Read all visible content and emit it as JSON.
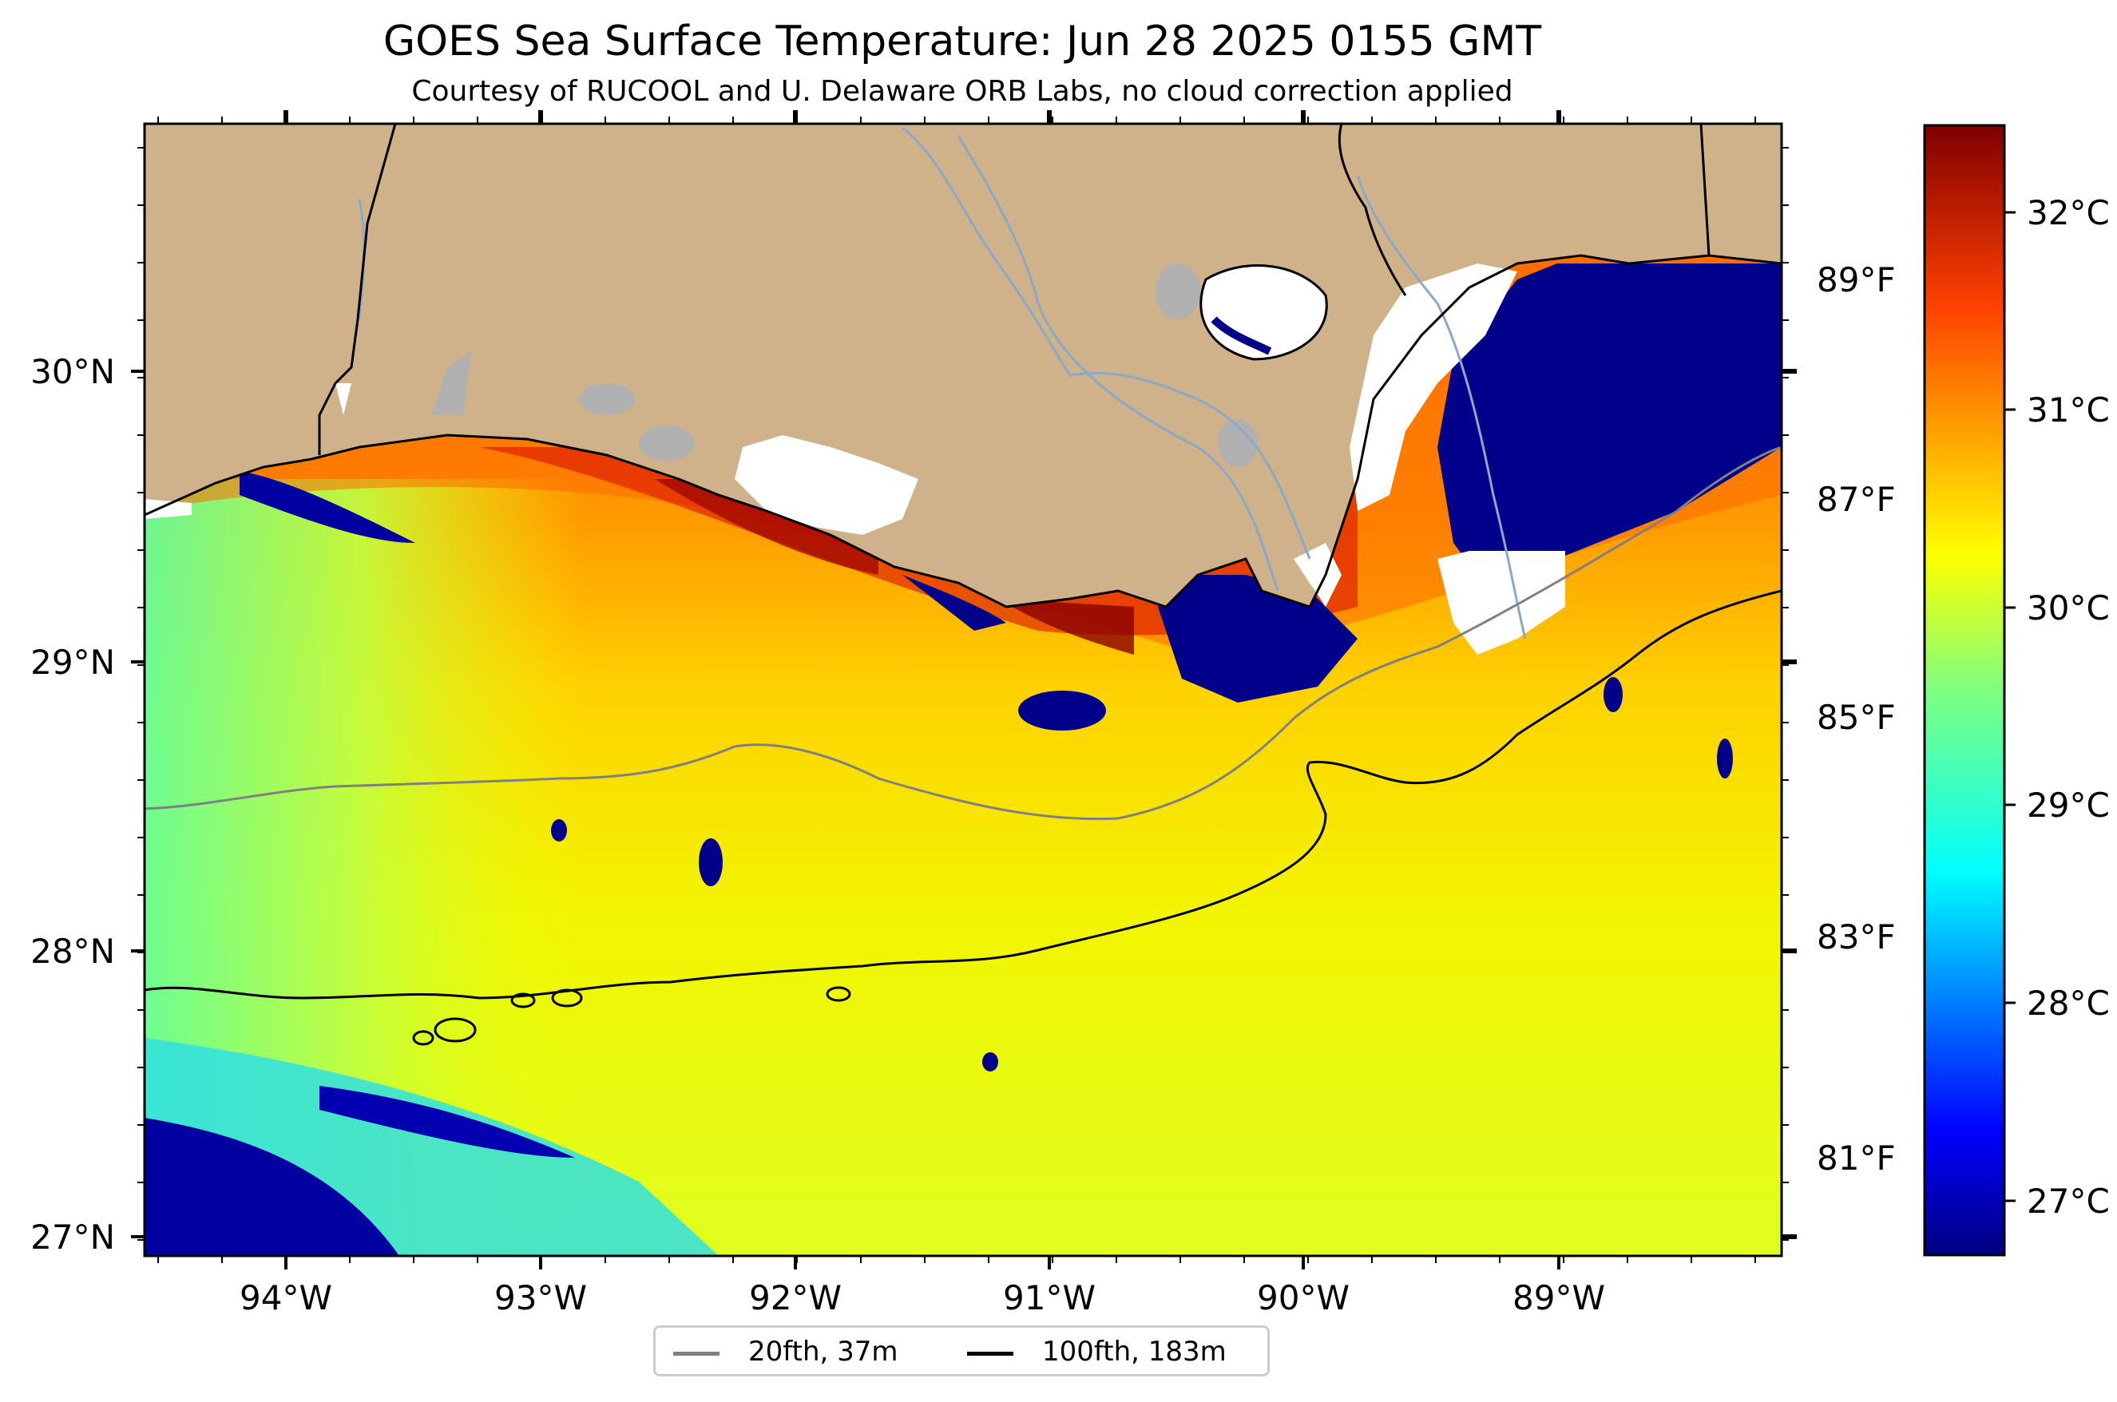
{
  "title": "GOES Sea Surface Temperature: Jun 28 2025 0155 GMT",
  "subtitle": "Courtesy of RUCOOL and U. Delaware ORB Labs, no cloud correction applied",
  "colors": {
    "land": "#cfb18a",
    "lakes": "#b0b0b0",
    "cloud_mask": "#ffffff",
    "contour_20fth": "#808080",
    "contour_100fth": "#000000"
  },
  "axes": {
    "lon_ticks": [
      "94°W",
      "93°W",
      "92°W",
      "91°W",
      "90°W",
      "89°W"
    ],
    "lat_ticks": [
      "30°N",
      "29°N",
      "28°N",
      "27°N"
    ],
    "fahrenheit_ticks": [
      "89°F",
      "87°F",
      "85°F",
      "83°F",
      "81°F"
    ]
  },
  "colorbar": {
    "celsius_ticks": [
      "32°C",
      "31°C",
      "30°C",
      "29°C",
      "28°C",
      "27°C"
    ],
    "range_c": [
      26.6,
      32.5
    ],
    "colormap": "jet"
  },
  "legend": {
    "items": [
      {
        "label": "20fth, 37m",
        "color": "#808080"
      },
      {
        "label": "100fth, 183m",
        "color": "#000000"
      }
    ]
  }
}
